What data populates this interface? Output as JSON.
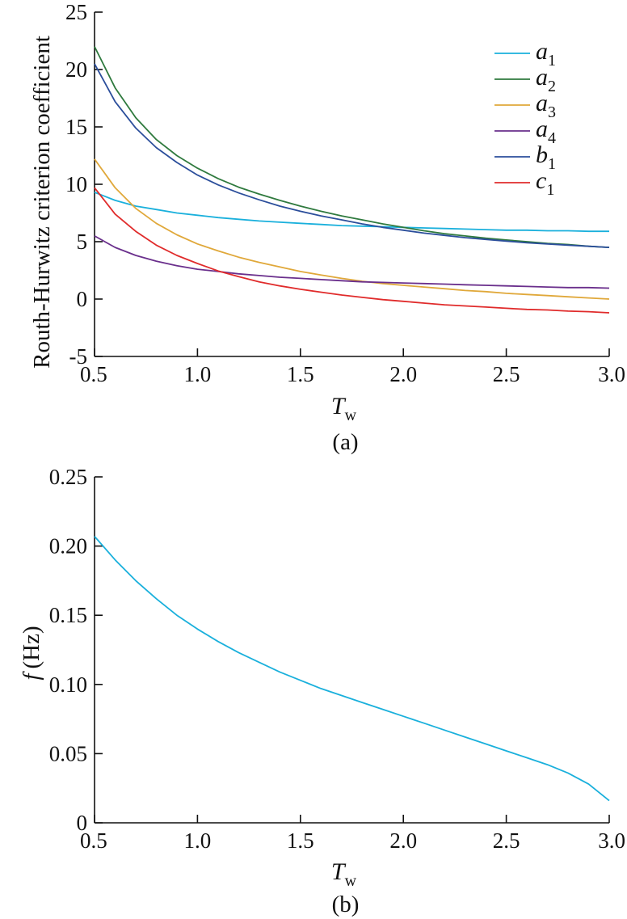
{
  "chart_data": [
    {
      "panel": "(a)",
      "type": "line",
      "xlabel": {
        "base": "T",
        "sub": "w"
      },
      "ylabel": "Routh-Hurwitz criterion coefficient",
      "xlim": [
        0.5,
        3.0
      ],
      "ylim": [
        -5,
        25
      ],
      "x_ticks": [
        "0.5",
        "1.0",
        "1.5",
        "2.0",
        "2.5",
        "3.0"
      ],
      "y_ticks": [
        "-5",
        "0",
        "5",
        "10",
        "15",
        "20",
        "25"
      ],
      "legend_position": "top-right",
      "x": [
        0.5,
        0.6,
        0.7,
        0.8,
        0.9,
        1.0,
        1.1,
        1.2,
        1.3,
        1.4,
        1.5,
        1.6,
        1.7,
        1.8,
        1.9,
        2.0,
        2.1,
        2.2,
        2.3,
        2.4,
        2.5,
        2.6,
        2.7,
        2.8,
        2.9,
        3.0
      ],
      "series": [
        {
          "name": "a",
          "sub": "1",
          "color": "#1ab0dc",
          "values": [
            9.3,
            8.6,
            8.1,
            7.8,
            7.5,
            7.3,
            7.1,
            6.95,
            6.8,
            6.7,
            6.6,
            6.5,
            6.4,
            6.35,
            6.3,
            6.25,
            6.2,
            6.15,
            6.1,
            6.05,
            6.0,
            6.0,
            5.95,
            5.95,
            5.9,
            5.9
          ]
        },
        {
          "name": "a",
          "sub": "2",
          "color": "#2f7a3e",
          "values": [
            22.0,
            18.4,
            15.8,
            13.9,
            12.5,
            11.4,
            10.5,
            9.75,
            9.15,
            8.6,
            8.1,
            7.65,
            7.25,
            6.9,
            6.55,
            6.25,
            5.95,
            5.7,
            5.5,
            5.3,
            5.15,
            5.0,
            4.85,
            4.75,
            4.6,
            4.5
          ]
        },
        {
          "name": "a",
          "sub": "3",
          "color": "#e0a83a",
          "values": [
            12.2,
            9.7,
            7.9,
            6.6,
            5.6,
            4.8,
            4.2,
            3.65,
            3.2,
            2.8,
            2.4,
            2.1,
            1.8,
            1.55,
            1.35,
            1.2,
            1.05,
            0.9,
            0.75,
            0.65,
            0.5,
            0.4,
            0.3,
            0.2,
            0.1,
            0.0
          ]
        },
        {
          "name": "a",
          "sub": "4",
          "color": "#6a2f8c",
          "values": [
            5.5,
            4.5,
            3.8,
            3.3,
            2.9,
            2.6,
            2.4,
            2.2,
            2.05,
            1.9,
            1.8,
            1.7,
            1.6,
            1.5,
            1.45,
            1.4,
            1.35,
            1.3,
            1.25,
            1.2,
            1.15,
            1.1,
            1.05,
            1.0,
            1.0,
            0.95
          ]
        },
        {
          "name": "b",
          "sub": "1",
          "color": "#2b4e9b",
          "values": [
            20.5,
            17.2,
            14.9,
            13.2,
            11.9,
            10.8,
            9.95,
            9.25,
            8.65,
            8.1,
            7.65,
            7.25,
            6.9,
            6.55,
            6.25,
            6.0,
            5.75,
            5.55,
            5.35,
            5.2,
            5.05,
            4.9,
            4.8,
            4.7,
            4.6,
            4.5
          ]
        },
        {
          "name": "c",
          "sub": "1",
          "color": "#e02b2b",
          "values": [
            9.7,
            7.4,
            5.9,
            4.7,
            3.8,
            3.1,
            2.45,
            1.95,
            1.5,
            1.15,
            0.85,
            0.6,
            0.35,
            0.15,
            -0.05,
            -0.2,
            -0.35,
            -0.5,
            -0.6,
            -0.7,
            -0.8,
            -0.9,
            -0.95,
            -1.05,
            -1.1,
            -1.2
          ]
        }
      ]
    },
    {
      "panel": "(b)",
      "type": "line",
      "xlabel": {
        "base": "T",
        "sub": "w"
      },
      "ylabel": {
        "var": "f",
        "unit": "(Hz)"
      },
      "xlim": [
        0.5,
        3.0
      ],
      "ylim": [
        0,
        0.25
      ],
      "x_ticks": [
        "0.5",
        "1.0",
        "1.5",
        "2.0",
        "2.5",
        "3.0"
      ],
      "y_ticks": [
        "0",
        "0.05",
        "0.10",
        "0.15",
        "0.20",
        "0.25"
      ],
      "x": [
        0.5,
        0.6,
        0.7,
        0.8,
        0.9,
        1.0,
        1.1,
        1.2,
        1.3,
        1.4,
        1.5,
        1.6,
        1.7,
        1.8,
        1.9,
        2.0,
        2.1,
        2.2,
        2.3,
        2.4,
        2.5,
        2.6,
        2.7,
        2.8,
        2.9,
        3.0
      ],
      "series": [
        {
          "color": "#1ab0dc",
          "values": [
            0.207,
            0.19,
            0.175,
            0.162,
            0.15,
            0.14,
            0.131,
            0.123,
            0.116,
            0.109,
            0.103,
            0.097,
            0.092,
            0.087,
            0.082,
            0.077,
            0.072,
            0.067,
            0.062,
            0.057,
            0.052,
            0.047,
            0.042,
            0.036,
            0.028,
            0.016
          ]
        }
      ]
    }
  ]
}
